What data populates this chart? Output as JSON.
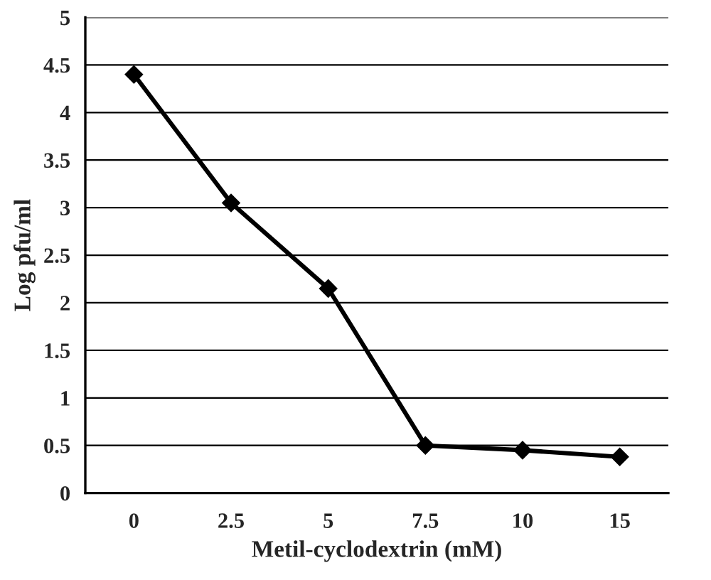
{
  "chart_data": {
    "type": "line",
    "xlabel": "Metil-cyclodextrin (mM)",
    "ylabel": "Log pfu/ml",
    "categories": [
      "0",
      "2.5",
      "5",
      "7.5",
      "10",
      "15"
    ],
    "series": [
      {
        "color": "#000000",
        "values": [
          4.4,
          3.05,
          2.15,
          0.5,
          0.45,
          0.38
        ]
      }
    ],
    "ylim": [
      0,
      5
    ],
    "yticks": [
      0,
      0.5,
      1,
      1.5,
      2,
      2.5,
      3,
      3.5,
      4,
      4.5,
      5
    ],
    "grid": "y",
    "legend": false,
    "marker": "diamond",
    "line_style": "solid"
  }
}
